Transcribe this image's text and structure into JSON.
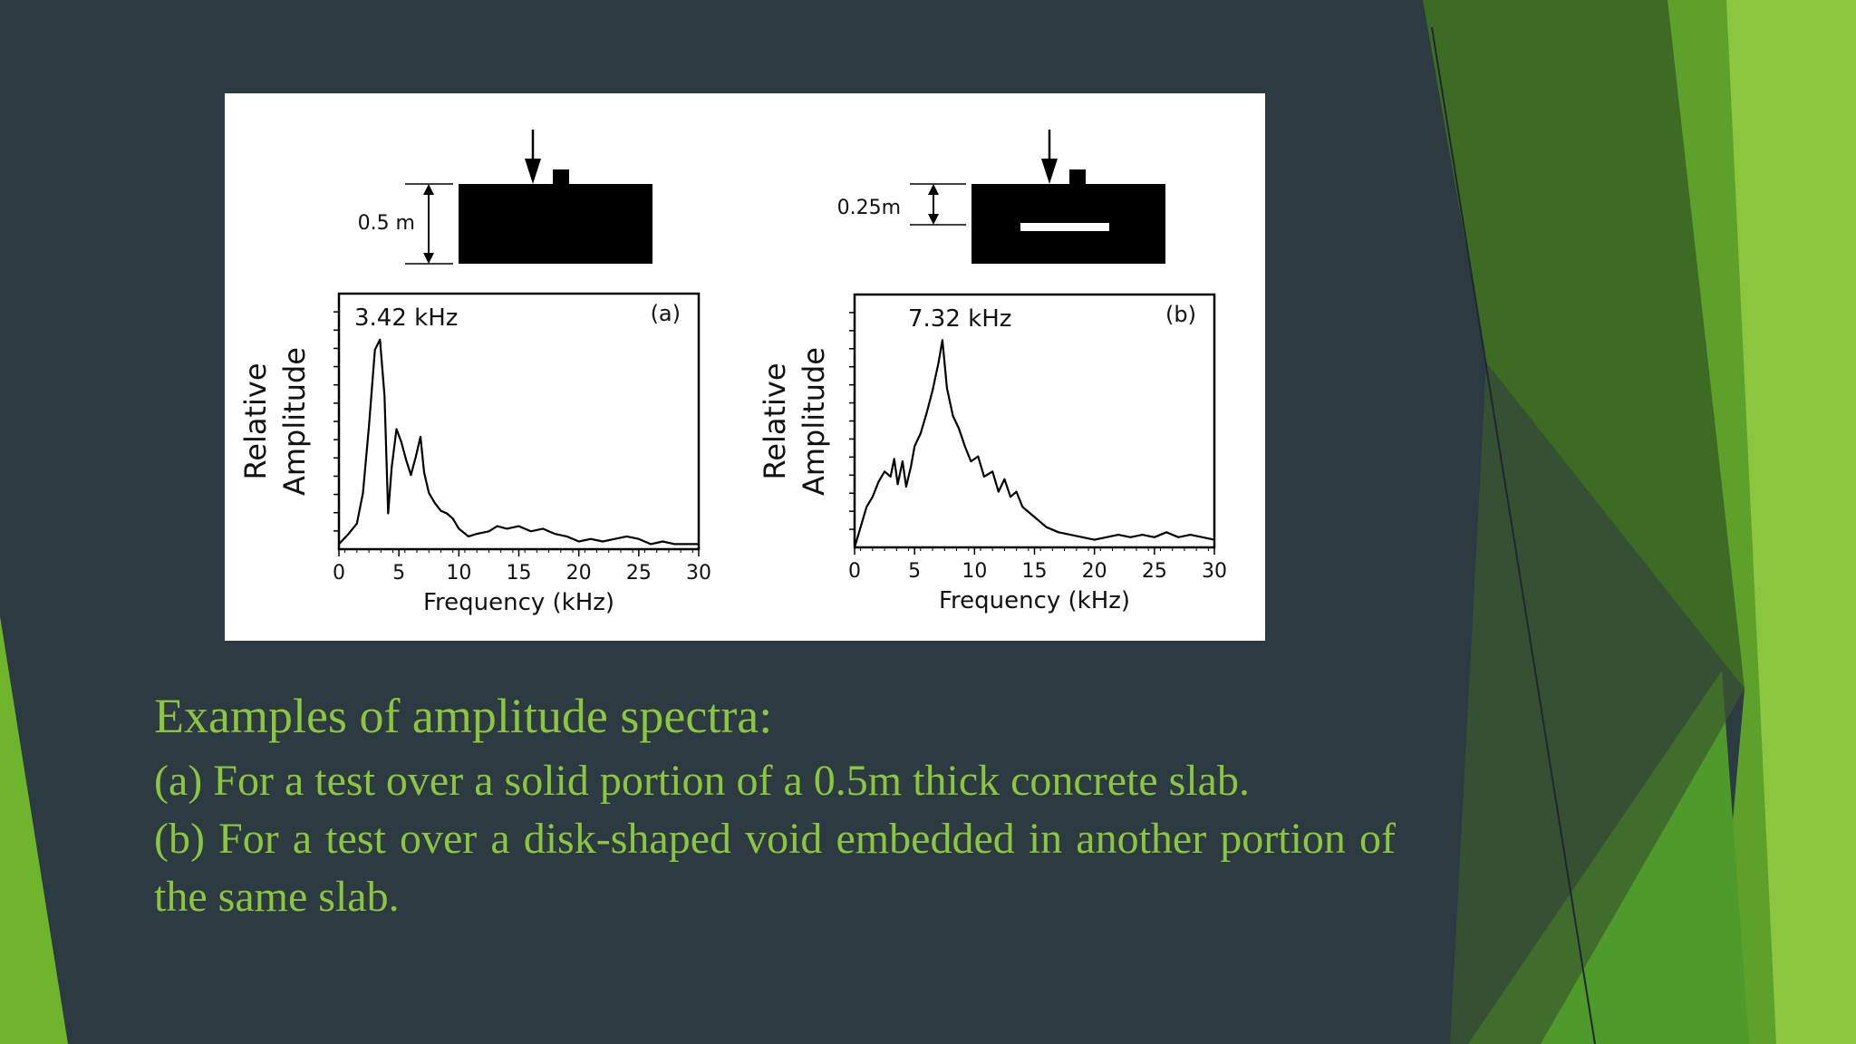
{
  "slide": {
    "colors": {
      "background": "#2c3a42",
      "accent_light": "#8cc63f",
      "accent_mid": "#4e9a2a",
      "accent_dark": "#3d6b24",
      "caption_text": "#8cc63f"
    },
    "caption": {
      "title": "Examples of amplitude spectra:",
      "line_a": "(a) For a test over a solid portion of a 0.5m thick concrete slab.",
      "line_b": "(b) For a test over a disk-shaped void embedded in another portion of the same slab."
    }
  },
  "chart_data": [
    {
      "type": "line",
      "panel_label": "(a)",
      "thickness_label": "0.5 m",
      "peak_label": "3.42 kHz",
      "peak_frequency_khz": 3.42,
      "ylabel_line1": "Relative",
      "ylabel_line2": "Amplitude",
      "xlabel": "Frequency (kHz)",
      "xlim": [
        0,
        30
      ],
      "ylim": [
        0,
        1
      ],
      "xticks": [
        "0",
        "5",
        "10",
        "15",
        "20",
        "25",
        "30"
      ],
      "has_void": false,
      "x": [
        0,
        0.8,
        1.5,
        2.0,
        2.5,
        3.0,
        3.42,
        3.8,
        4.1,
        4.4,
        4.8,
        5.2,
        5.6,
        6.0,
        6.4,
        6.8,
        7.1,
        7.5,
        8.0,
        8.5,
        9.0,
        9.5,
        10.0,
        10.8,
        11.5,
        12.5,
        13.2,
        14.0,
        15.0,
        16.0,
        17.0,
        18.0,
        19.0,
        20.0,
        21.0,
        22.0,
        23.0,
        24.0,
        25.0,
        26.0,
        27.0,
        28.0,
        29.0,
        30.0
      ],
      "y": [
        0.02,
        0.06,
        0.1,
        0.22,
        0.48,
        0.78,
        0.82,
        0.6,
        0.14,
        0.32,
        0.47,
        0.42,
        0.35,
        0.29,
        0.36,
        0.44,
        0.3,
        0.22,
        0.18,
        0.15,
        0.14,
        0.12,
        0.08,
        0.05,
        0.06,
        0.07,
        0.09,
        0.08,
        0.09,
        0.07,
        0.08,
        0.06,
        0.05,
        0.03,
        0.04,
        0.03,
        0.04,
        0.05,
        0.04,
        0.02,
        0.03,
        0.02,
        0.02,
        0.02
      ]
    },
    {
      "type": "line",
      "panel_label": "(b)",
      "thickness_label": "0.25m",
      "peak_label": "7.32 kHz",
      "peak_frequency_khz": 7.32,
      "ylabel_line1": "Relative",
      "ylabel_line2": "Amplitude",
      "xlabel": "Frequency (kHz)",
      "xlim": [
        0,
        30
      ],
      "ylim": [
        0,
        1
      ],
      "xticks": [
        "0",
        "5",
        "10",
        "15",
        "20",
        "25",
        "30"
      ],
      "has_void": true,
      "x": [
        0,
        0.5,
        1.0,
        1.5,
        2.0,
        2.5,
        3.0,
        3.3,
        3.6,
        4.0,
        4.3,
        4.7,
        5.0,
        5.5,
        6.0,
        6.5,
        7.0,
        7.32,
        7.7,
        8.2,
        8.7,
        9.2,
        9.7,
        10.3,
        10.8,
        11.5,
        12.0,
        12.5,
        13.0,
        13.5,
        14.0,
        15.0,
        16.0,
        17.0,
        18.0,
        19.0,
        20.0,
        21.0,
        22.0,
        23.0,
        24.0,
        25.0,
        26.0,
        27.0,
        28.0,
        29.0,
        30.0
      ],
      "y": [
        0.0,
        0.08,
        0.16,
        0.2,
        0.26,
        0.3,
        0.28,
        0.35,
        0.25,
        0.34,
        0.24,
        0.32,
        0.4,
        0.45,
        0.53,
        0.62,
        0.73,
        0.82,
        0.63,
        0.52,
        0.47,
        0.4,
        0.34,
        0.36,
        0.28,
        0.3,
        0.22,
        0.27,
        0.2,
        0.22,
        0.16,
        0.12,
        0.08,
        0.06,
        0.05,
        0.04,
        0.03,
        0.04,
        0.05,
        0.04,
        0.05,
        0.04,
        0.06,
        0.04,
        0.05,
        0.04,
        0.03
      ]
    }
  ]
}
